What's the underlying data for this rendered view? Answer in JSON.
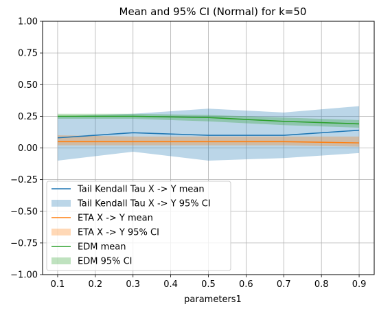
{
  "chart_data": {
    "type": "line",
    "title": "Mean and 95% CI (Normal) for k=50",
    "xlabel": "parameters1",
    "ylabel": "",
    "x": [
      0.1,
      0.3,
      0.5,
      0.7,
      0.9
    ],
    "xlim": [
      0.06,
      0.94
    ],
    "ylim": [
      -1.0,
      1.0
    ],
    "xticks": [
      0.1,
      0.2,
      0.3,
      0.4,
      0.5,
      0.6,
      0.7,
      0.8,
      0.9
    ],
    "xtick_labels": [
      "0.1",
      "0.2",
      "0.3",
      "0.4",
      "0.5",
      "0.6",
      "0.7",
      "0.8",
      "0.9"
    ],
    "yticks": [
      -1.0,
      -0.75,
      -0.5,
      -0.25,
      0.0,
      0.25,
      0.5,
      0.75,
      1.0
    ],
    "ytick_labels": [
      "−1.00",
      "−0.75",
      "−0.50",
      "−0.25",
      "0.00",
      "0.25",
      "0.50",
      "0.75",
      "1.00"
    ],
    "grid": true,
    "legend_position": "lower-left",
    "series": [
      {
        "name": "Tail Kendall Tau X -> Y mean",
        "ci_name": "Tail Kendall Tau X -> Y 95% CI",
        "color": "#1f77b4",
        "mean": [
          0.08,
          0.12,
          0.1,
          0.1,
          0.14
        ],
        "lower": [
          -0.1,
          -0.03,
          -0.1,
          -0.08,
          -0.04
        ],
        "upper": [
          0.25,
          0.27,
          0.31,
          0.28,
          0.33
        ]
      },
      {
        "name": "ETA X -> Y mean",
        "ci_name": "ETA X -> Y 95% CI",
        "color": "#ff7f0e",
        "mean": [
          0.05,
          0.05,
          0.05,
          0.05,
          0.04
        ],
        "lower": [
          0.02,
          0.02,
          0.02,
          0.02,
          0.01
        ],
        "upper": [
          0.1,
          0.09,
          0.09,
          0.09,
          0.09
        ]
      },
      {
        "name": "EDM mean",
        "ci_name": "EDM 95% CI",
        "color": "#2ca02c",
        "mean": [
          0.25,
          0.25,
          0.24,
          0.21,
          0.19
        ],
        "lower": [
          0.23,
          0.23,
          0.21,
          0.18,
          0.16
        ],
        "upper": [
          0.27,
          0.27,
          0.26,
          0.24,
          0.22
        ]
      }
    ]
  }
}
